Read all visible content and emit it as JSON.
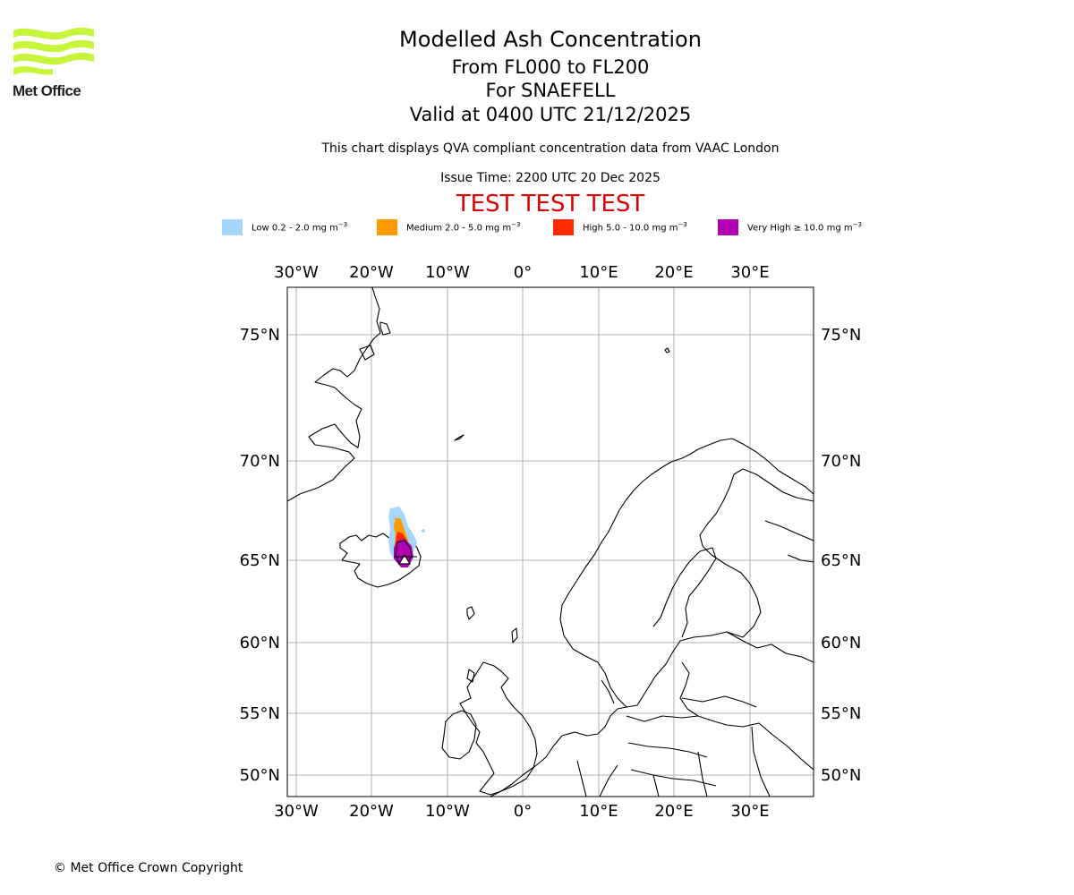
{
  "header": {
    "title": "Modelled Ash Concentration",
    "flight_levels": "From FL000 to FL200",
    "volcano": "For SNAEFELL",
    "valid_time": "Valid at 0400 UTC 21/12/2025",
    "description": "This chart displays QVA compliant concentration data from VAAC London",
    "issue_time": "Issue Time: 2200 UTC 20 Dec 2025",
    "test_banner": "TEST TEST TEST"
  },
  "logo": {
    "name": "Met Office"
  },
  "legend": [
    {
      "label": "Low 0.2 - 2.0 mg m",
      "exp": "−3",
      "color": "#a6d6fc"
    },
    {
      "label": "Medium 2.0 - 5.0 mg m",
      "exp": "−3",
      "color": "#ff9a00"
    },
    {
      "label": "High 5.0 - 10.0 mg m",
      "exp": "−3",
      "color": "#ff2b00"
    },
    {
      "label": "Very High  ≥  10.0 mg m",
      "exp": "−3",
      "color": "#b200b2"
    }
  ],
  "map": {
    "lon_labels": [
      "30°W",
      "20°W",
      "10°W",
      "0°",
      "10°E",
      "20°E",
      "30°E"
    ],
    "lat_labels": [
      "75°N",
      "70°N",
      "65°N",
      "60°N",
      "55°N",
      "50°N"
    ],
    "region": "North Atlantic / Scandinavia",
    "volcano_marker": "Snaefell"
  },
  "footer": {
    "copyright": "© Met Office Crown Copyright"
  }
}
